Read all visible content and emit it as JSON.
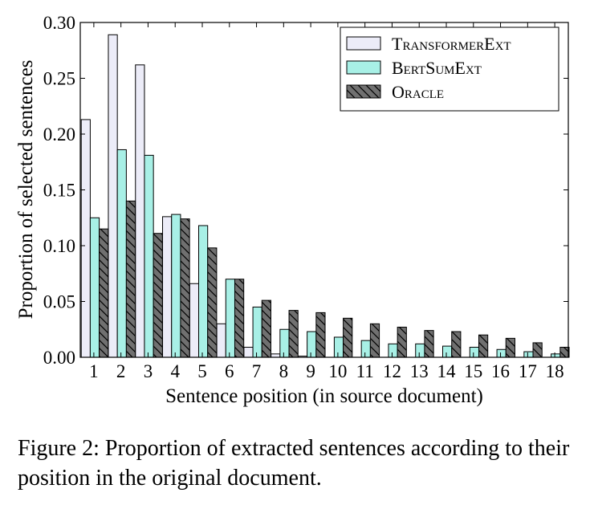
{
  "chart_data": {
    "type": "bar",
    "xlabel": "Sentence position (in source document)",
    "ylabel": "Proportion of selected sentences",
    "ylim": [
      0,
      0.3
    ],
    "yticks": [
      "0.00",
      "0.05",
      "0.10",
      "0.15",
      "0.20",
      "0.25",
      "0.30"
    ],
    "categories": [
      "1",
      "2",
      "3",
      "4",
      "5",
      "6",
      "7",
      "8",
      "9",
      "10",
      "11",
      "12",
      "13",
      "14",
      "15",
      "16",
      "17",
      "18"
    ],
    "legend_position": "top-right",
    "grid": false,
    "series": [
      {
        "name": "TransformerExt",
        "color": "#ececf8",
        "hatch": false,
        "values": [
          0.213,
          0.289,
          0.262,
          0.126,
          0.066,
          0.03,
          0.009,
          0.003,
          0.001,
          0,
          0,
          0,
          0,
          0,
          0,
          0,
          0,
          0
        ]
      },
      {
        "name": "BertSumExt",
        "color": "#a8f0e6",
        "hatch": false,
        "values": [
          0.125,
          0.186,
          0.181,
          0.128,
          0.118,
          0.07,
          0.045,
          0.025,
          0.023,
          0.018,
          0.015,
          0.012,
          0.012,
          0.01,
          0.009,
          0.007,
          0.005,
          0.003
        ]
      },
      {
        "name": "Oracle",
        "color": "#707070",
        "hatch": true,
        "values": [
          0.115,
          0.14,
          0.111,
          0.124,
          0.098,
          0.07,
          0.051,
          0.042,
          0.04,
          0.035,
          0.03,
          0.027,
          0.024,
          0.023,
          0.02,
          0.017,
          0.013,
          0.009
        ]
      }
    ]
  },
  "caption": "Figure 2: Proportion of extracted sentences according to their position in the original document."
}
